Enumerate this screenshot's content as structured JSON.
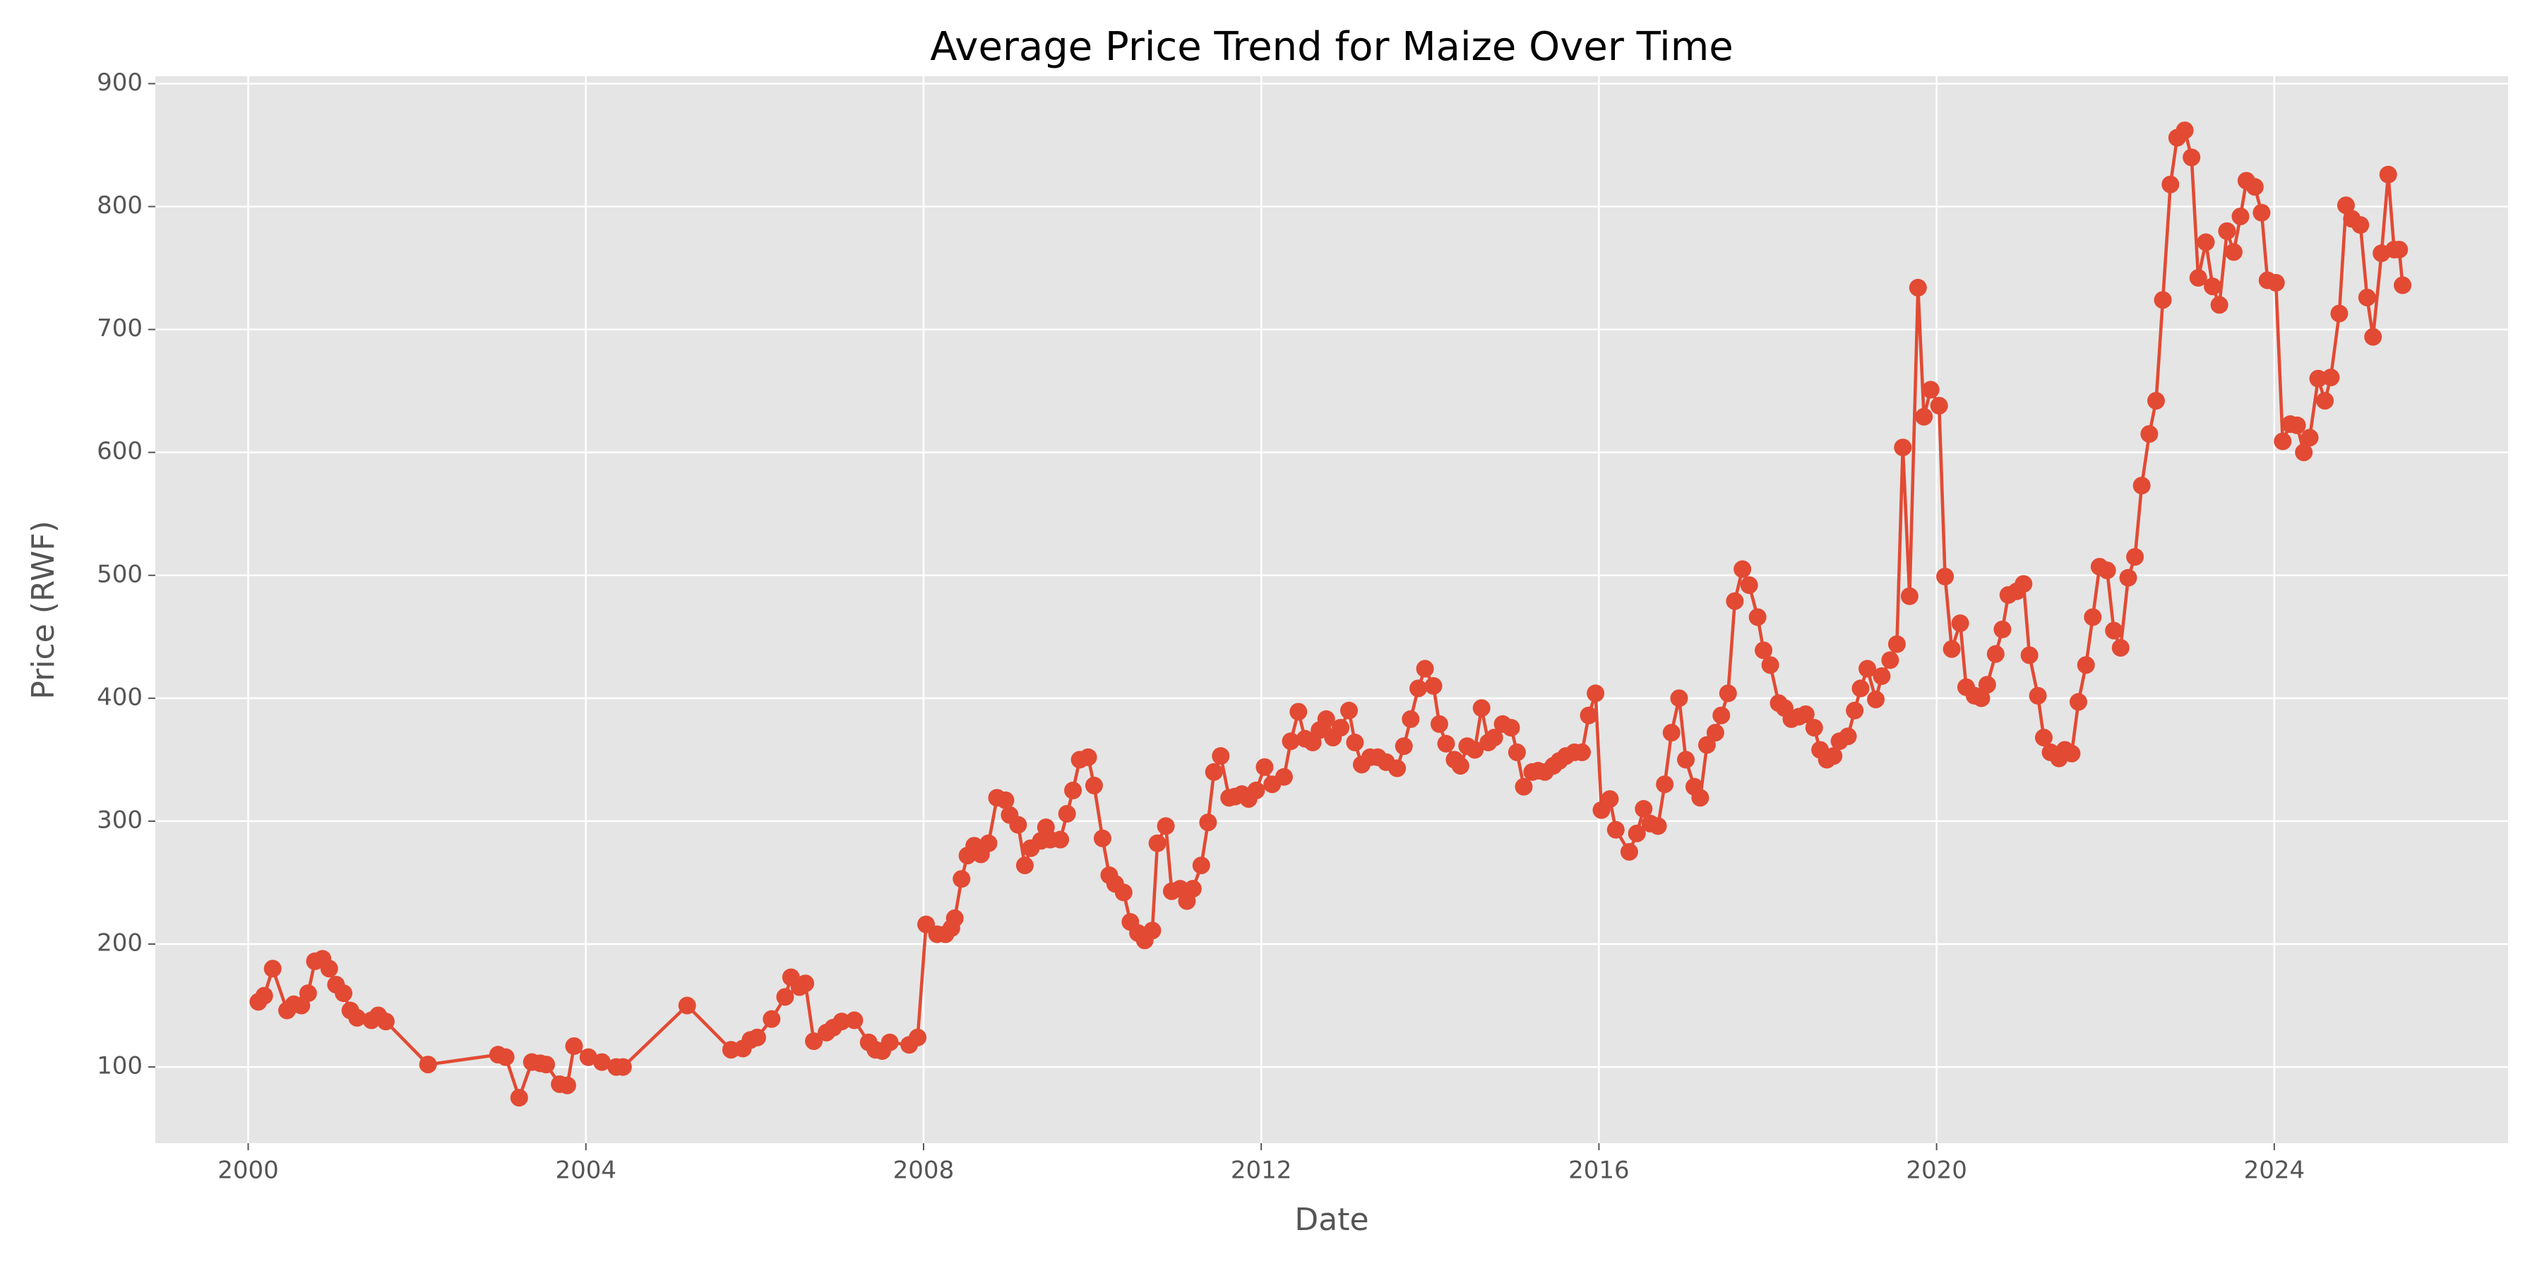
{
  "chart_data": {
    "type": "line",
    "title": "Average Price Trend for Maize Over Time",
    "xlabel": "Date",
    "ylabel": "Price (RWF)",
    "color": "#E24A33",
    "grid": true,
    "markers": true,
    "xlim": [
      1998.9,
      2026.77
    ],
    "ylim": [
      38,
      906
    ],
    "xticks": [
      2000,
      2004,
      2008,
      2012,
      2016,
      2020,
      2024
    ],
    "yticks": [
      100,
      200,
      300,
      400,
      500,
      600,
      700,
      800,
      900
    ],
    "x": [
      2000.12,
      2000.19,
      2000.29,
      2000.46,
      2000.54,
      2000.63,
      2000.71,
      2000.79,
      2000.88,
      2000.96,
      2001.04,
      2001.13,
      2001.21,
      2001.29,
      2001.46,
      2001.54,
      2001.63,
      2002.13,
      2002.96,
      2003.05,
      2003.21,
      2003.36,
      2003.46,
      2003.53,
      2003.69,
      2003.78,
      2003.86,
      2004.03,
      2004.19,
      2004.36,
      2004.44,
      2005.2,
      2005.72,
      2005.86,
      2005.95,
      2006.03,
      2006.2,
      2006.36,
      2006.43,
      2006.53,
      2006.6,
      2006.7,
      2006.85,
      2006.93,
      2007.03,
      2007.18,
      2007.35,
      2007.43,
      2007.51,
      2007.6,
      2007.83,
      2007.93,
      2008.03,
      2008.16,
      2008.26,
      2008.33,
      2008.37,
      2008.45,
      2008.52,
      2008.6,
      2008.68,
      2008.77,
      2008.87,
      2008.97,
      2009.02,
      2009.12,
      2009.2,
      2009.27,
      2009.39,
      2009.45,
      2009.5,
      2009.62,
      2009.7,
      2009.77,
      2009.85,
      2009.95,
      2010.02,
      2010.12,
      2010.2,
      2010.27,
      2010.37,
      2010.45,
      2010.54,
      2010.62,
      2010.71,
      2010.77,
      2010.87,
      2010.94,
      2011.04,
      2011.12,
      2011.19,
      2011.29,
      2011.37,
      2011.44,
      2011.52,
      2011.62,
      2011.69,
      2011.77,
      2011.85,
      2011.94,
      2012.04,
      2012.13,
      2012.27,
      2012.35,
      2012.44,
      2012.52,
      2012.61,
      2012.69,
      2012.77,
      2012.85,
      2012.94,
      2013.04,
      2013.11,
      2013.19,
      2013.29,
      2013.38,
      2013.48,
      2013.61,
      2013.69,
      2013.77,
      2013.86,
      2013.94,
      2014.04,
      2014.11,
      2014.19,
      2014.29,
      2014.36,
      2014.44,
      2014.53,
      2014.61,
      2014.69,
      2014.76,
      2014.86,
      2014.96,
      2015.03,
      2015.11,
      2015.21,
      2015.28,
      2015.36,
      2015.46,
      2015.53,
      2015.61,
      2015.71,
      2015.8,
      2015.88,
      2015.96,
      2016.03,
      2016.13,
      2016.2,
      2016.36,
      2016.45,
      2016.53,
      2016.61,
      2016.7,
      2016.78,
      2016.86,
      2016.95,
      2017.03,
      2017.13,
      2017.2,
      2017.28,
      2017.38,
      2017.45,
      2017.53,
      2017.61,
      2017.7,
      2017.78,
      2017.88,
      2017.95,
      2018.03,
      2018.13,
      2018.2,
      2018.28,
      2018.37,
      2018.45,
      2018.55,
      2018.62,
      2018.7,
      2018.78,
      2018.85,
      2018.95,
      2019.03,
      2019.1,
      2019.18,
      2019.28,
      2019.35,
      2019.45,
      2019.53,
      2019.6,
      2019.68,
      2019.78,
      2019.85,
      2019.93,
      2020.03,
      2020.1,
      2020.18,
      2020.28,
      2020.35,
      2020.45,
      2020.53,
      2020.6,
      2020.7,
      2020.78,
      2020.85,
      2020.95,
      2021.03,
      2021.1,
      2021.2,
      2021.27,
      2021.35,
      2021.45,
      2021.52,
      2021.6,
      2021.68,
      2021.77,
      2021.85,
      2021.93,
      2022.02,
      2022.1,
      2022.18,
      2022.27,
      2022.35,
      2022.43,
      2022.52,
      2022.6,
      2022.68,
      2022.77,
      2022.85,
      2022.94,
      2023.02,
      2023.1,
      2023.19,
      2023.27,
      2023.35,
      2023.44,
      2023.52,
      2023.6,
      2023.67,
      2023.77,
      2023.85,
      2023.92,
      2024.02,
      2024.1,
      2024.19,
      2024.27,
      2024.35,
      2024.42,
      2024.52,
      2024.6,
      2024.67,
      2024.77,
      2024.85,
      2024.92,
      2025.02,
      2025.1,
      2025.17,
      2025.27,
      2025.35,
      2025.42,
      2025.48,
      2025.52
    ],
    "values": [
      153,
      158,
      180,
      146,
      151,
      150,
      160,
      186,
      188,
      180,
      167,
      160,
      146,
      140,
      138,
      142,
      137,
      102,
      110,
      108,
      75,
      104,
      103,
      102,
      86,
      85,
      117,
      108,
      104,
      100,
      100,
      150,
      114,
      115,
      122,
      124,
      139,
      157,
      173,
      165,
      168,
      121,
      128,
      132,
      137,
      138,
      120,
      114,
      113,
      120,
      118,
      124,
      216,
      208,
      208,
      213,
      221,
      253,
      272,
      280,
      273,
      282,
      319,
      317,
      305,
      297,
      264,
      278,
      284,
      295,
      285,
      285,
      306,
      325,
      350,
      352,
      329,
      286,
      256,
      249,
      242,
      218,
      209,
      203,
      211,
      282,
      296,
      243,
      245,
      235,
      245,
      264,
      299,
      340,
      353,
      319,
      320,
      322,
      318,
      325,
      344,
      330,
      336,
      365,
      389,
      367,
      364,
      374,
      383,
      368,
      376,
      390,
      364,
      346,
      352,
      352,
      348,
      343,
      361,
      383,
      408,
      424,
      410,
      379,
      363,
      350,
      345,
      361,
      358,
      392,
      364,
      368,
      379,
      376,
      356,
      328,
      340,
      341,
      340,
      345,
      349,
      353,
      356,
      356,
      386,
      404,
      309,
      318,
      293,
      275,
      290,
      310,
      298,
      296,
      330,
      372,
      400,
      350,
      328,
      319,
      362,
      372,
      386,
      404,
      479,
      505,
      492,
      466,
      439,
      427,
      396,
      392,
      383,
      385,
      387,
      376,
      358,
      350,
      353,
      365,
      369,
      390,
      408,
      424,
      399,
      418,
      431,
      444,
      604,
      483,
      734,
      629,
      651,
      638,
      499,
      440,
      461,
      409,
      402,
      400,
      411,
      436,
      456,
      484,
      487,
      493,
      435,
      402,
      368,
      356,
      351,
      358,
      355,
      397,
      427,
      466,
      507,
      504,
      455,
      441,
      498,
      515,
      573,
      615,
      642,
      724,
      818,
      856,
      862,
      840,
      742,
      771,
      735,
      720,
      780,
      763,
      792,
      821,
      816,
      795,
      740,
      738,
      609,
      623,
      622,
      600,
      612,
      660,
      642,
      661,
      713,
      801,
      790,
      785,
      726,
      694,
      762,
      826,
      765,
      765,
      736
    ]
  }
}
